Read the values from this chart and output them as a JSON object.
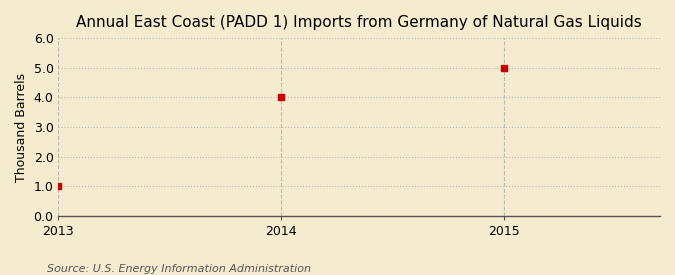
{
  "title": "Annual East Coast (PADD 1) Imports from Germany of Natural Gas Liquids",
  "ylabel": "Thousand Barrels",
  "source": "Source: U.S. Energy Information Administration",
  "background_color": "#f5eccf",
  "plot_background_color": "#f5eccf",
  "x_data": [
    2013,
    2014,
    2015
  ],
  "y_data": [
    1.0,
    4.0,
    5.0
  ],
  "xlim": [
    2013.0,
    2015.7
  ],
  "ylim": [
    0.0,
    6.0
  ],
  "yticks": [
    0.0,
    1.0,
    2.0,
    3.0,
    4.0,
    5.0,
    6.0
  ],
  "xticks": [
    2013,
    2014,
    2015
  ],
  "marker_color": "#cc0000",
  "marker_size": 4,
  "grid_color": "#bbbbbb",
  "grid_linestyle": ":",
  "vline_color": "#bbbbbb",
  "vline_linestyle": "--",
  "title_fontsize": 11,
  "label_fontsize": 9,
  "tick_fontsize": 9,
  "source_fontsize": 8
}
